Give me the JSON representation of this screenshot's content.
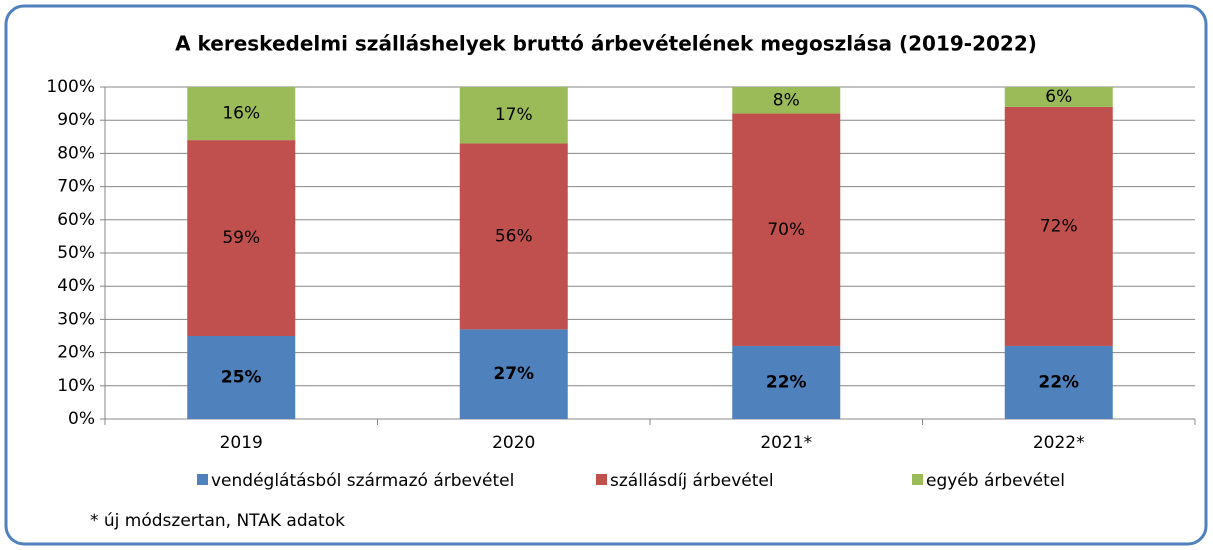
{
  "chart_data": {
    "type": "stacked_bar",
    "title": "A kereskedelmi szálláshelyek bruttó árbevételének megoszlása (2019-2022)",
    "categories": [
      "2019",
      "2020",
      "2021*",
      "2022*"
    ],
    "series": [
      {
        "name": "vendéglátásból származó árbevétel",
        "color": "#4f81bd",
        "values": [
          25,
          27,
          22,
          22
        ],
        "value_labels": [
          "25%",
          "27%",
          "22%",
          "22%"
        ]
      },
      {
        "name": "szállásdíj árbevétel",
        "color": "#c0504d",
        "values": [
          59,
          56,
          70,
          72
        ],
        "value_labels": [
          "59%",
          "56%",
          "70%",
          "72%"
        ]
      },
      {
        "name": "egyéb árbevétel",
        "color": "#9bbb59",
        "values": [
          16,
          17,
          8,
          6
        ],
        "value_labels": [
          "16%",
          "17%",
          "8%",
          "6%"
        ]
      }
    ],
    "ylim": [
      0,
      100
    ],
    "yticks": [
      {
        "value": 0,
        "label": "0%"
      },
      {
        "value": 10,
        "label": "10%"
      },
      {
        "value": 20,
        "label": "20%"
      },
      {
        "value": 30,
        "label": "30%"
      },
      {
        "value": 40,
        "label": "40%"
      },
      {
        "value": 50,
        "label": "50%"
      },
      {
        "value": 60,
        "label": "60%"
      },
      {
        "value": 70,
        "label": "70%"
      },
      {
        "value": 80,
        "label": "80%"
      },
      {
        "value": 90,
        "label": "90%"
      },
      {
        "value": 100,
        "label": "100%"
      }
    ],
    "grid": true,
    "legend": "bottom",
    "annotation": "* új módszertan, NTAK adatok"
  }
}
